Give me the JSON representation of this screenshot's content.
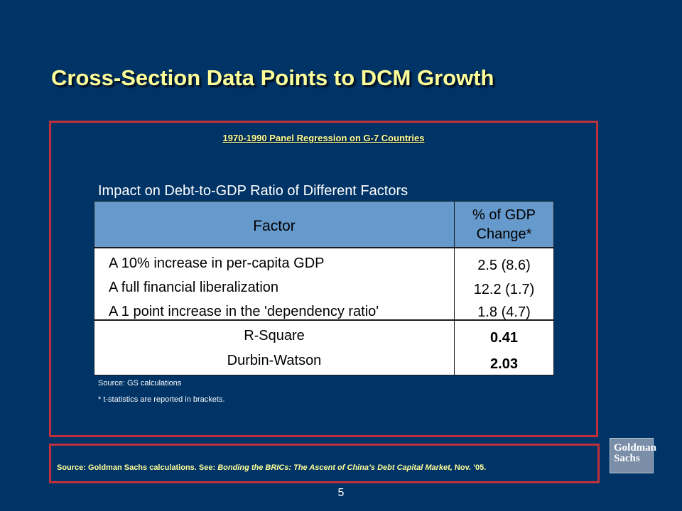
{
  "title": "Cross-Section Data Points to DCM Growth",
  "panel": {
    "subtitle": "1970-1990 Panel Regression on G-7 Countries",
    "table_title": "Impact on Debt-to-GDP Ratio of Different Factors",
    "header": {
      "factor": "Factor",
      "pct_line1": "% of GDP",
      "pct_line2": "Change*"
    },
    "rows": [
      {
        "factor": "A 10% increase in per-capita GDP",
        "value": "2.5 (8.6)"
      },
      {
        "factor": "A full financial liberalization",
        "value": "12.2 (1.7)"
      },
      {
        "factor": "A 1 point increase in the 'dependency ratio'",
        "value": "1.8 (4.7)"
      }
    ],
    "stats": [
      {
        "label": "R-Square",
        "value": "0.41"
      },
      {
        "label": "Durbin-Watson",
        "value": "2.03"
      }
    ],
    "notes": [
      "Source: GS calculations",
      "* t-statistics are reported in brackets."
    ]
  },
  "source": {
    "prefix": "Source:  Goldman Sachs calculations.  See: ",
    "publication": "Bonding the BRICs: The Ascent of China’s Debt Capital Market,",
    "suffix": " Nov. ’05."
  },
  "logo": {
    "line1": "Goldman",
    "line2": "Sachs"
  },
  "page_number": "5"
}
